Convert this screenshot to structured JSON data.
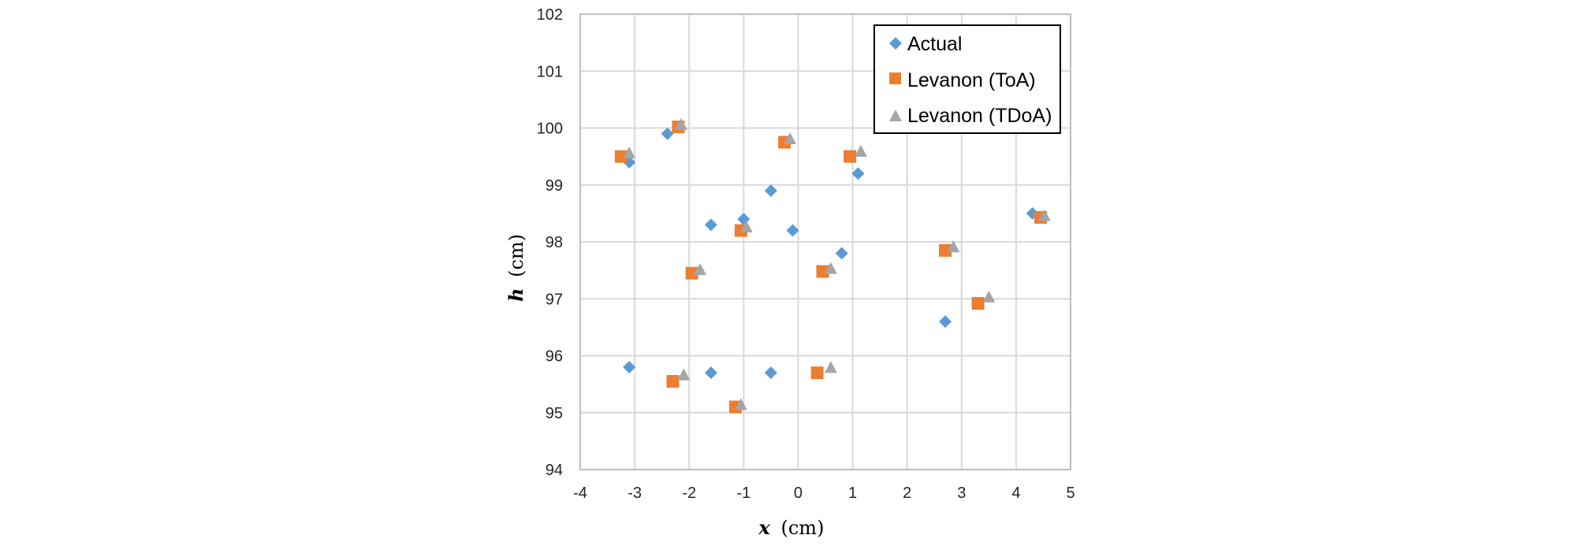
{
  "chart_data": {
    "type": "scatter",
    "title": "",
    "xlabel": {
      "symbol": "x",
      "unit": "(cm)"
    },
    "ylabel": {
      "symbol": "h",
      "unit": "(cm)"
    },
    "xlim": [
      -4,
      5
    ],
    "ylim": [
      94,
      102
    ],
    "x_ticks": [
      -4,
      -3,
      -2,
      -1,
      0,
      1,
      2,
      3,
      4,
      5
    ],
    "y_ticks": [
      94,
      95,
      96,
      97,
      98,
      99,
      100,
      101,
      102
    ],
    "grid": true,
    "legend_position": "top-right",
    "series": [
      {
        "name": "Actual",
        "marker": "diamond",
        "color": "#5b9bd5",
        "points": [
          [
            -3.1,
            99.4
          ],
          [
            -2.4,
            99.9
          ],
          [
            -1.6,
            98.3
          ],
          [
            -1.0,
            98.4
          ],
          [
            -0.5,
            98.9
          ],
          [
            -0.1,
            98.2
          ],
          [
            0.8,
            97.8
          ],
          [
            1.1,
            99.2
          ],
          [
            -3.1,
            95.8
          ],
          [
            -1.6,
            95.7
          ],
          [
            -0.5,
            95.7
          ],
          [
            2.7,
            96.6
          ],
          [
            4.3,
            98.5
          ]
        ]
      },
      {
        "name": "Levanon (ToA)",
        "marker": "square",
        "color": "#ed7d31",
        "points": [
          [
            -3.25,
            99.5
          ],
          [
            -2.2,
            100.02
          ],
          [
            -1.95,
            97.45
          ],
          [
            -1.05,
            98.2
          ],
          [
            -0.25,
            99.75
          ],
          [
            0.95,
            99.5
          ],
          [
            0.45,
            97.48
          ],
          [
            2.7,
            97.85
          ],
          [
            3.3,
            96.92
          ],
          [
            4.45,
            98.43
          ],
          [
            -2.3,
            95.55
          ],
          [
            -1.15,
            95.1
          ],
          [
            0.35,
            95.7
          ]
        ]
      },
      {
        "name": "Levanon (TDoA)",
        "marker": "triangle",
        "color": "#a5a5a5",
        "points": [
          [
            -3.1,
            99.55
          ],
          [
            -2.15,
            100.05
          ],
          [
            -1.8,
            97.5
          ],
          [
            -0.95,
            98.25
          ],
          [
            -0.15,
            99.8
          ],
          [
            1.15,
            99.58
          ],
          [
            0.6,
            97.52
          ],
          [
            2.85,
            97.9
          ],
          [
            3.5,
            97.02
          ],
          [
            4.52,
            98.45
          ],
          [
            -2.1,
            95.65
          ],
          [
            -1.05,
            95.13
          ],
          [
            0.6,
            95.78
          ]
        ]
      }
    ]
  }
}
